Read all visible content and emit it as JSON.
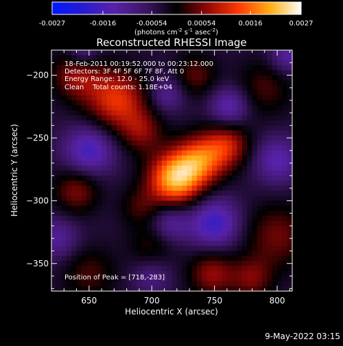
{
  "colorbar": {
    "ticks": [
      "-0.0027",
      "-0.0016",
      "-0.00054",
      "0.00054",
      "0.0016",
      "0.0027"
    ],
    "unit_parts": [
      "(photons cm",
      "-2",
      " s",
      "-1",
      " asec",
      "-2",
      ")"
    ]
  },
  "footer": {
    "timestamp": "9-May-2022 03:15"
  },
  "chart_data": {
    "type": "heatmap",
    "title": "Reconstructed RHESSI Image",
    "xlabel": "Heliocentric X (arcsec)",
    "ylabel": "Heliocentric Y (arcsec)",
    "xlim": [
      620,
      812
    ],
    "ylim": [
      -372,
      -180
    ],
    "xticks": [
      650,
      700,
      750,
      800
    ],
    "yticks": [
      -200,
      -250,
      -300,
      -350
    ],
    "clim": [
      -0.0027,
      0.0027
    ],
    "annotations": [
      "18-Feb-2011 00:19:52.000 to 00:23:12.000",
      "Detectors: 3F 4F 5F 6F 7F 8F, Att 0",
      "Energy Range: 12.0 - 25.0 keV",
      "Clean    Total counts: 1.18E+04"
    ],
    "peak_label": "Position of Peak = [718,-283]",
    "peak": [
      718,
      -283
    ],
    "sources": [
      {
        "x": 718,
        "y": -283,
        "sigma": 15,
        "amp": 0.0024
      },
      {
        "x": 738,
        "y": -268,
        "sigma": 14,
        "amp": 0.0017
      },
      {
        "x": 760,
        "y": -256,
        "sigma": 13,
        "amp": 0.0013
      },
      {
        "x": 672,
        "y": -220,
        "sigma": 17,
        "amp": 0.0016
      },
      {
        "x": 640,
        "y": -200,
        "sigma": 14,
        "amp": 0.0011
      },
      {
        "x": 692,
        "y": -245,
        "sigma": 12,
        "amp": 0.0009
      },
      {
        "x": 640,
        "y": -292,
        "sigma": 13,
        "amp": 0.001
      },
      {
        "x": 735,
        "y": -200,
        "sigma": 12,
        "amp": 0.0008
      },
      {
        "x": 790,
        "y": -210,
        "sigma": 16,
        "amp": 0.0007
      },
      {
        "x": 800,
        "y": -328,
        "sigma": 18,
        "amp": 0.0009
      },
      {
        "x": 748,
        "y": -358,
        "sigma": 13,
        "amp": 0.0011
      },
      {
        "x": 780,
        "y": -362,
        "sigma": 12,
        "amp": 0.0009
      },
      {
        "x": 650,
        "y": -358,
        "sigma": 15,
        "amp": 0.0007
      },
      {
        "x": 700,
        "y": -336,
        "sigma": 13,
        "amp": 0.0006
      },
      {
        "x": 690,
        "y": -305,
        "sigma": 11,
        "amp": 0.0006
      },
      {
        "x": 750,
        "y": -318,
        "sigma": 14,
        "amp": -0.0014
      },
      {
        "x": 715,
        "y": -318,
        "sigma": 11,
        "amp": -0.0009
      },
      {
        "x": 650,
        "y": -260,
        "sigma": 14,
        "amp": -0.0013
      },
      {
        "x": 762,
        "y": -225,
        "sigma": 11,
        "amp": -0.0011
      },
      {
        "x": 712,
        "y": -215,
        "sigma": 10,
        "amp": -0.0008
      },
      {
        "x": 800,
        "y": -268,
        "sigma": 13,
        "amp": -0.001
      },
      {
        "x": 625,
        "y": -330,
        "sigma": 12,
        "amp": -0.0008
      },
      {
        "x": 700,
        "y": -360,
        "sigma": 11,
        "amp": -0.0006
      },
      {
        "x": 645,
        "y": -182,
        "sigma": 9,
        "amp": -0.0008
      },
      {
        "x": 808,
        "y": -185,
        "sigma": 10,
        "amp": -0.0009
      }
    ],
    "background": -0.0004
  }
}
